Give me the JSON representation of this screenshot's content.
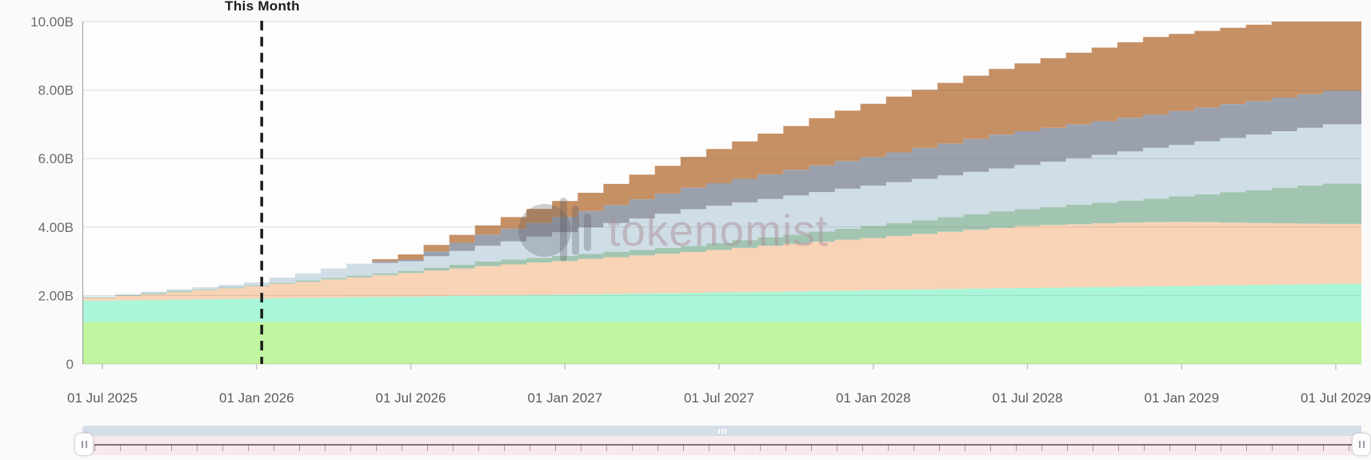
{
  "annotation": {
    "label": "This Month",
    "month": "Jan 2026",
    "month_index": 6
  },
  "watermark": {
    "text": "tokenomist"
  },
  "colors": {
    "background": "#fafafa",
    "plot_background": "#fdfdfd",
    "gridline": "rgba(110,110,110,0.22)",
    "axis_line": "#9a9aa0",
    "tick_label": "#5c5c5c",
    "annotation_line": "#1c1c1c",
    "scrollbar_thumb": "#d5dee9",
    "scrollbar_track": "#f7e9ed",
    "scrollbar_axis_line": "#6e575d",
    "handle_background": "#fdfdfd"
  },
  "chart_data": {
    "type": "area",
    "stacked": true,
    "step_interval": "month",
    "title": "",
    "xlabel": "",
    "ylabel": "",
    "units": "B (billions of tokens)",
    "ylim_billions": [
      0,
      10
    ],
    "grid": true,
    "legend": false,
    "y_tick_labels": [
      "10.00B",
      "8.00B",
      "6.00B",
      "4.00B",
      "2.00B",
      "0"
    ],
    "y_tick_values": [
      10,
      8,
      6,
      4,
      2,
      0
    ],
    "x_tick_labels": [
      "01 Jul 2025",
      "01 Jan 2026",
      "01 Jul 2026",
      "01 Jan 2027",
      "01 Jul 2027",
      "01 Jan 2028",
      "01 Jul 2028",
      "01 Jan 2029",
      "01 Jul 2029"
    ],
    "annotation_vline": {
      "label": "This Month",
      "month": "Jan 2026",
      "month_index": 6
    },
    "x": [
      "Jul 2025",
      "Aug 2025",
      "Sep 2025",
      "Oct 2025",
      "Nov 2025",
      "Dec 2025",
      "Jan 2026",
      "Feb 2026",
      "Mar 2026",
      "Apr 2026",
      "May 2026",
      "Jun 2026",
      "Jul 2026",
      "Aug 2026",
      "Sep 2026",
      "Oct 2026",
      "Nov 2026",
      "Dec 2026",
      "Jan 2027",
      "Feb 2027",
      "Mar 2027",
      "Apr 2027",
      "May 2027",
      "Jun 2027",
      "Jul 2027",
      "Aug 2027",
      "Sep 2027",
      "Oct 2027",
      "Nov 2027",
      "Dec 2027",
      "Jan 2028",
      "Feb 2028",
      "Mar 2028",
      "Apr 2028",
      "May 2028",
      "Jun 2028",
      "Jul 2028",
      "Aug 2028",
      "Sep 2028",
      "Oct 2028",
      "Nov 2028",
      "Dec 2028",
      "Jan 2029",
      "Feb 2029",
      "Mar 2029",
      "Apr 2029",
      "May 2029",
      "Jun 2029",
      "Jul 2029"
    ],
    "series": [
      {
        "name": "light-green",
        "color": "#c1f49e",
        "values": [
          1.22,
          1.22,
          1.22,
          1.22,
          1.22,
          1.22,
          1.22,
          1.22,
          1.22,
          1.22,
          1.22,
          1.22,
          1.22,
          1.22,
          1.22,
          1.22,
          1.22,
          1.22,
          1.22,
          1.22,
          1.22,
          1.22,
          1.22,
          1.22,
          1.22,
          1.22,
          1.22,
          1.22,
          1.22,
          1.22,
          1.22,
          1.22,
          1.22,
          1.22,
          1.22,
          1.22,
          1.22,
          1.22,
          1.22,
          1.22,
          1.22,
          1.22,
          1.22,
          1.22,
          1.22,
          1.22,
          1.22,
          1.22,
          1.22
        ]
      },
      {
        "name": "mint",
        "color": "#a9f6d8",
        "values": [
          0.63,
          0.64,
          0.65,
          0.66,
          0.67,
          0.68,
          0.69,
          0.7,
          0.71,
          0.72,
          0.73,
          0.74,
          0.75,
          0.76,
          0.77,
          0.78,
          0.79,
          0.8,
          0.81,
          0.82,
          0.83,
          0.84,
          0.85,
          0.86,
          0.87,
          0.88,
          0.89,
          0.9,
          0.91,
          0.92,
          0.94,
          0.95,
          0.96,
          0.97,
          0.98,
          0.99,
          1.0,
          1.01,
          1.02,
          1.03,
          1.04,
          1.05,
          1.06,
          1.07,
          1.08,
          1.09,
          1.1,
          1.11,
          1.12
        ]
      },
      {
        "name": "peach",
        "color": "#f8d3b6",
        "values": [
          0.08,
          0.13,
          0.17,
          0.22,
          0.27,
          0.31,
          0.36,
          0.42,
          0.47,
          0.53,
          0.58,
          0.64,
          0.69,
          0.75,
          0.8,
          0.86,
          0.9,
          0.94,
          0.98,
          1.03,
          1.07,
          1.11,
          1.15,
          1.19,
          1.24,
          1.29,
          1.34,
          1.39,
          1.44,
          1.49,
          1.52,
          1.57,
          1.62,
          1.67,
          1.72,
          1.77,
          1.81,
          1.83,
          1.84,
          1.86,
          1.87,
          1.87,
          1.87,
          1.85,
          1.83,
          1.81,
          1.79,
          1.77,
          1.75
        ]
      },
      {
        "name": "sage",
        "color": "#a2c5b1",
        "values": [
          0.02,
          0.02,
          0.03,
          0.03,
          0.02,
          0.03,
          0.03,
          0.03,
          0.04,
          0.04,
          0.05,
          0.05,
          0.06,
          0.08,
          0.11,
          0.13,
          0.14,
          0.14,
          0.15,
          0.15,
          0.16,
          0.16,
          0.17,
          0.18,
          0.2,
          0.23,
          0.25,
          0.27,
          0.3,
          0.32,
          0.36,
          0.38,
          0.4,
          0.43,
          0.45,
          0.48,
          0.49,
          0.52,
          0.57,
          0.6,
          0.64,
          0.69,
          0.75,
          0.82,
          0.89,
          0.96,
          1.04,
          1.11,
          1.18
        ]
      },
      {
        "name": "light-blue",
        "color": "#cfdde6",
        "values": [
          0.02,
          0.03,
          0.04,
          0.05,
          0.06,
          0.07,
          0.08,
          0.15,
          0.21,
          0.28,
          0.35,
          0.3,
          0.28,
          0.34,
          0.4,
          0.46,
          0.53,
          0.62,
          0.69,
          0.77,
          0.84,
          0.92,
          1.0,
          1.07,
          1.09,
          1.1,
          1.12,
          1.14,
          1.15,
          1.17,
          1.17,
          1.19,
          1.21,
          1.22,
          1.24,
          1.25,
          1.29,
          1.33,
          1.36,
          1.4,
          1.44,
          1.48,
          1.5,
          1.54,
          1.58,
          1.62,
          1.65,
          1.69,
          1.73
        ]
      },
      {
        "name": "slate-gray",
        "color": "#9aa1ad",
        "values": [
          0,
          0,
          0,
          0,
          0,
          0,
          0,
          0,
          0,
          0,
          0,
          0.05,
          0.05,
          0.14,
          0.24,
          0.33,
          0.37,
          0.4,
          0.44,
          0.48,
          0.52,
          0.56,
          0.59,
          0.63,
          0.66,
          0.69,
          0.72,
          0.75,
          0.78,
          0.81,
          0.84,
          0.87,
          0.9,
          0.93,
          0.96,
          0.99,
          0.99,
          0.99,
          0.99,
          0.98,
          0.98,
          0.98,
          0.99,
          0.99,
          0.99,
          0.98,
          0.98,
          0.98,
          0.98
        ]
      },
      {
        "name": "brown",
        "color": "#c69065",
        "values": [
          0,
          0,
          0,
          0,
          0,
          0,
          0,
          0,
          0,
          0,
          0,
          0.06,
          0.15,
          0.19,
          0.23,
          0.27,
          0.34,
          0.41,
          0.47,
          0.53,
          0.62,
          0.72,
          0.81,
          0.9,
          1.0,
          1.09,
          1.19,
          1.28,
          1.38,
          1.47,
          1.55,
          1.63,
          1.7,
          1.77,
          1.85,
          1.92,
          1.98,
          2.03,
          2.09,
          2.15,
          2.21,
          2.26,
          2.25,
          2.24,
          2.23,
          2.23,
          2.22,
          2.12,
          2.02
        ]
      }
    ]
  }
}
